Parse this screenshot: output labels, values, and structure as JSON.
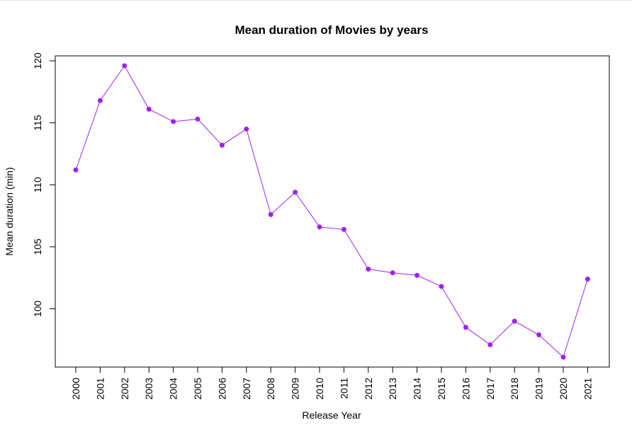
{
  "chart_data": {
    "type": "line",
    "title": "Mean duration of Movies by years",
    "xlabel": "Release Year",
    "ylabel": "Mean duration (min)",
    "x": [
      "2000",
      "2001",
      "2002",
      "2003",
      "2004",
      "2005",
      "2006",
      "2007",
      "2008",
      "2009",
      "2010",
      "2011",
      "2012",
      "2013",
      "2014",
      "2015",
      "2016",
      "2017",
      "2018",
      "2019",
      "2020",
      "2021"
    ],
    "values": [
      111.2,
      116.8,
      119.6,
      116.1,
      115.1,
      115.3,
      113.2,
      114.5,
      107.6,
      109.4,
      106.6,
      106.4,
      103.2,
      102.9,
      102.7,
      101.8,
      98.5,
      97.1,
      99.0,
      97.9,
      96.1,
      102.4
    ],
    "ylim": [
      95.3,
      120.4
    ],
    "yticks": [
      100,
      105,
      110,
      115,
      120
    ],
    "grid": false,
    "color": "#a020f0"
  }
}
